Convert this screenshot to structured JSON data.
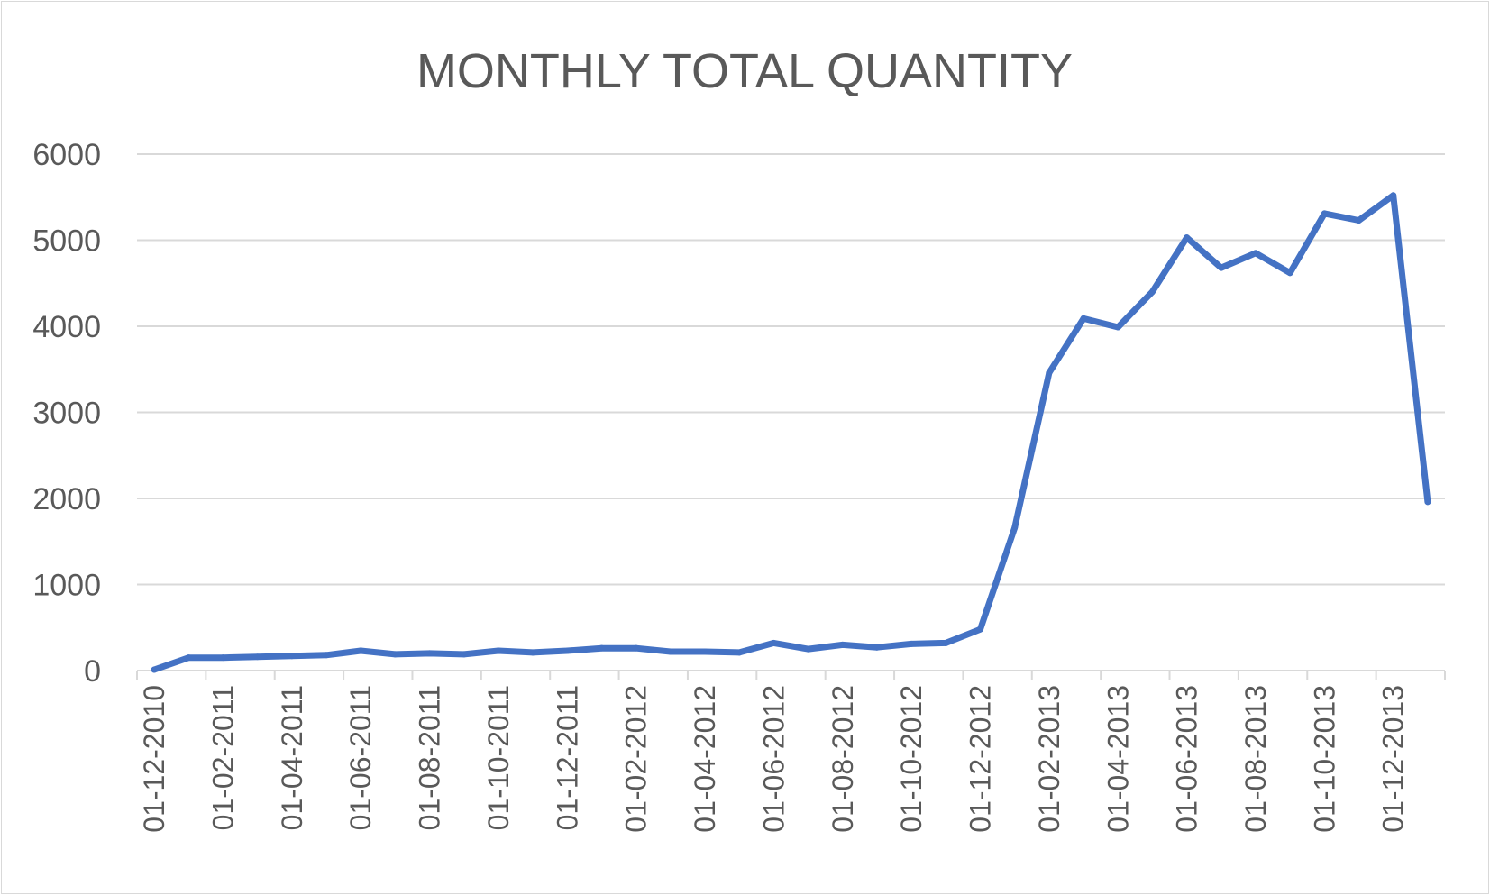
{
  "chart_data": {
    "type": "line",
    "title": "MONTHLY TOTAL QUANTITY",
    "xlabel": "",
    "ylabel": "",
    "ylim": [
      0,
      6000
    ],
    "yticks": [
      "0",
      "1000",
      "2000",
      "3000",
      "4000",
      "5000",
      "6000"
    ],
    "grid": "horizontal",
    "legend": "none",
    "line_color": "#4472c4",
    "x": [
      "01-12-2010",
      "01-01-2011",
      "01-02-2011",
      "01-03-2011",
      "01-04-2011",
      "01-05-2011",
      "01-06-2011",
      "01-07-2011",
      "01-08-2011",
      "01-09-2011",
      "01-10-2011",
      "01-11-2011",
      "01-12-2011",
      "01-01-2012",
      "01-02-2012",
      "01-03-2012",
      "01-04-2012",
      "01-05-2012",
      "01-06-2012",
      "01-07-2012",
      "01-08-2012",
      "01-09-2012",
      "01-10-2012",
      "01-11-2012",
      "01-12-2012",
      "01-01-2013",
      "01-02-2013",
      "01-03-2013",
      "01-04-2013",
      "01-05-2013",
      "01-06-2013",
      "01-07-2013",
      "01-08-2013",
      "01-09-2013",
      "01-10-2013",
      "01-11-2013",
      "01-12-2013",
      "01-01-2014"
    ],
    "xtick_labels": [
      "01-12-2010",
      "01-02-2011",
      "01-04-2011",
      "01-06-2011",
      "01-08-2011",
      "01-10-2011",
      "01-12-2011",
      "01-02-2012",
      "01-04-2012",
      "01-06-2012",
      "01-08-2012",
      "01-10-2012",
      "01-12-2012",
      "01-02-2013",
      "01-04-2013",
      "01-06-2013",
      "01-08-2013",
      "01-10-2013",
      "01-12-2013"
    ],
    "series": [
      {
        "values": [
          10,
          150,
          150,
          160,
          170,
          180,
          230,
          190,
          200,
          190,
          230,
          210,
          230,
          260,
          260,
          220,
          220,
          210,
          320,
          250,
          300,
          270,
          310,
          320,
          480,
          1660,
          3460,
          4090,
          3990,
          4400,
          5030,
          4680,
          4850,
          4620,
          5310,
          5230,
          5520,
          1960
        ]
      }
    ]
  }
}
